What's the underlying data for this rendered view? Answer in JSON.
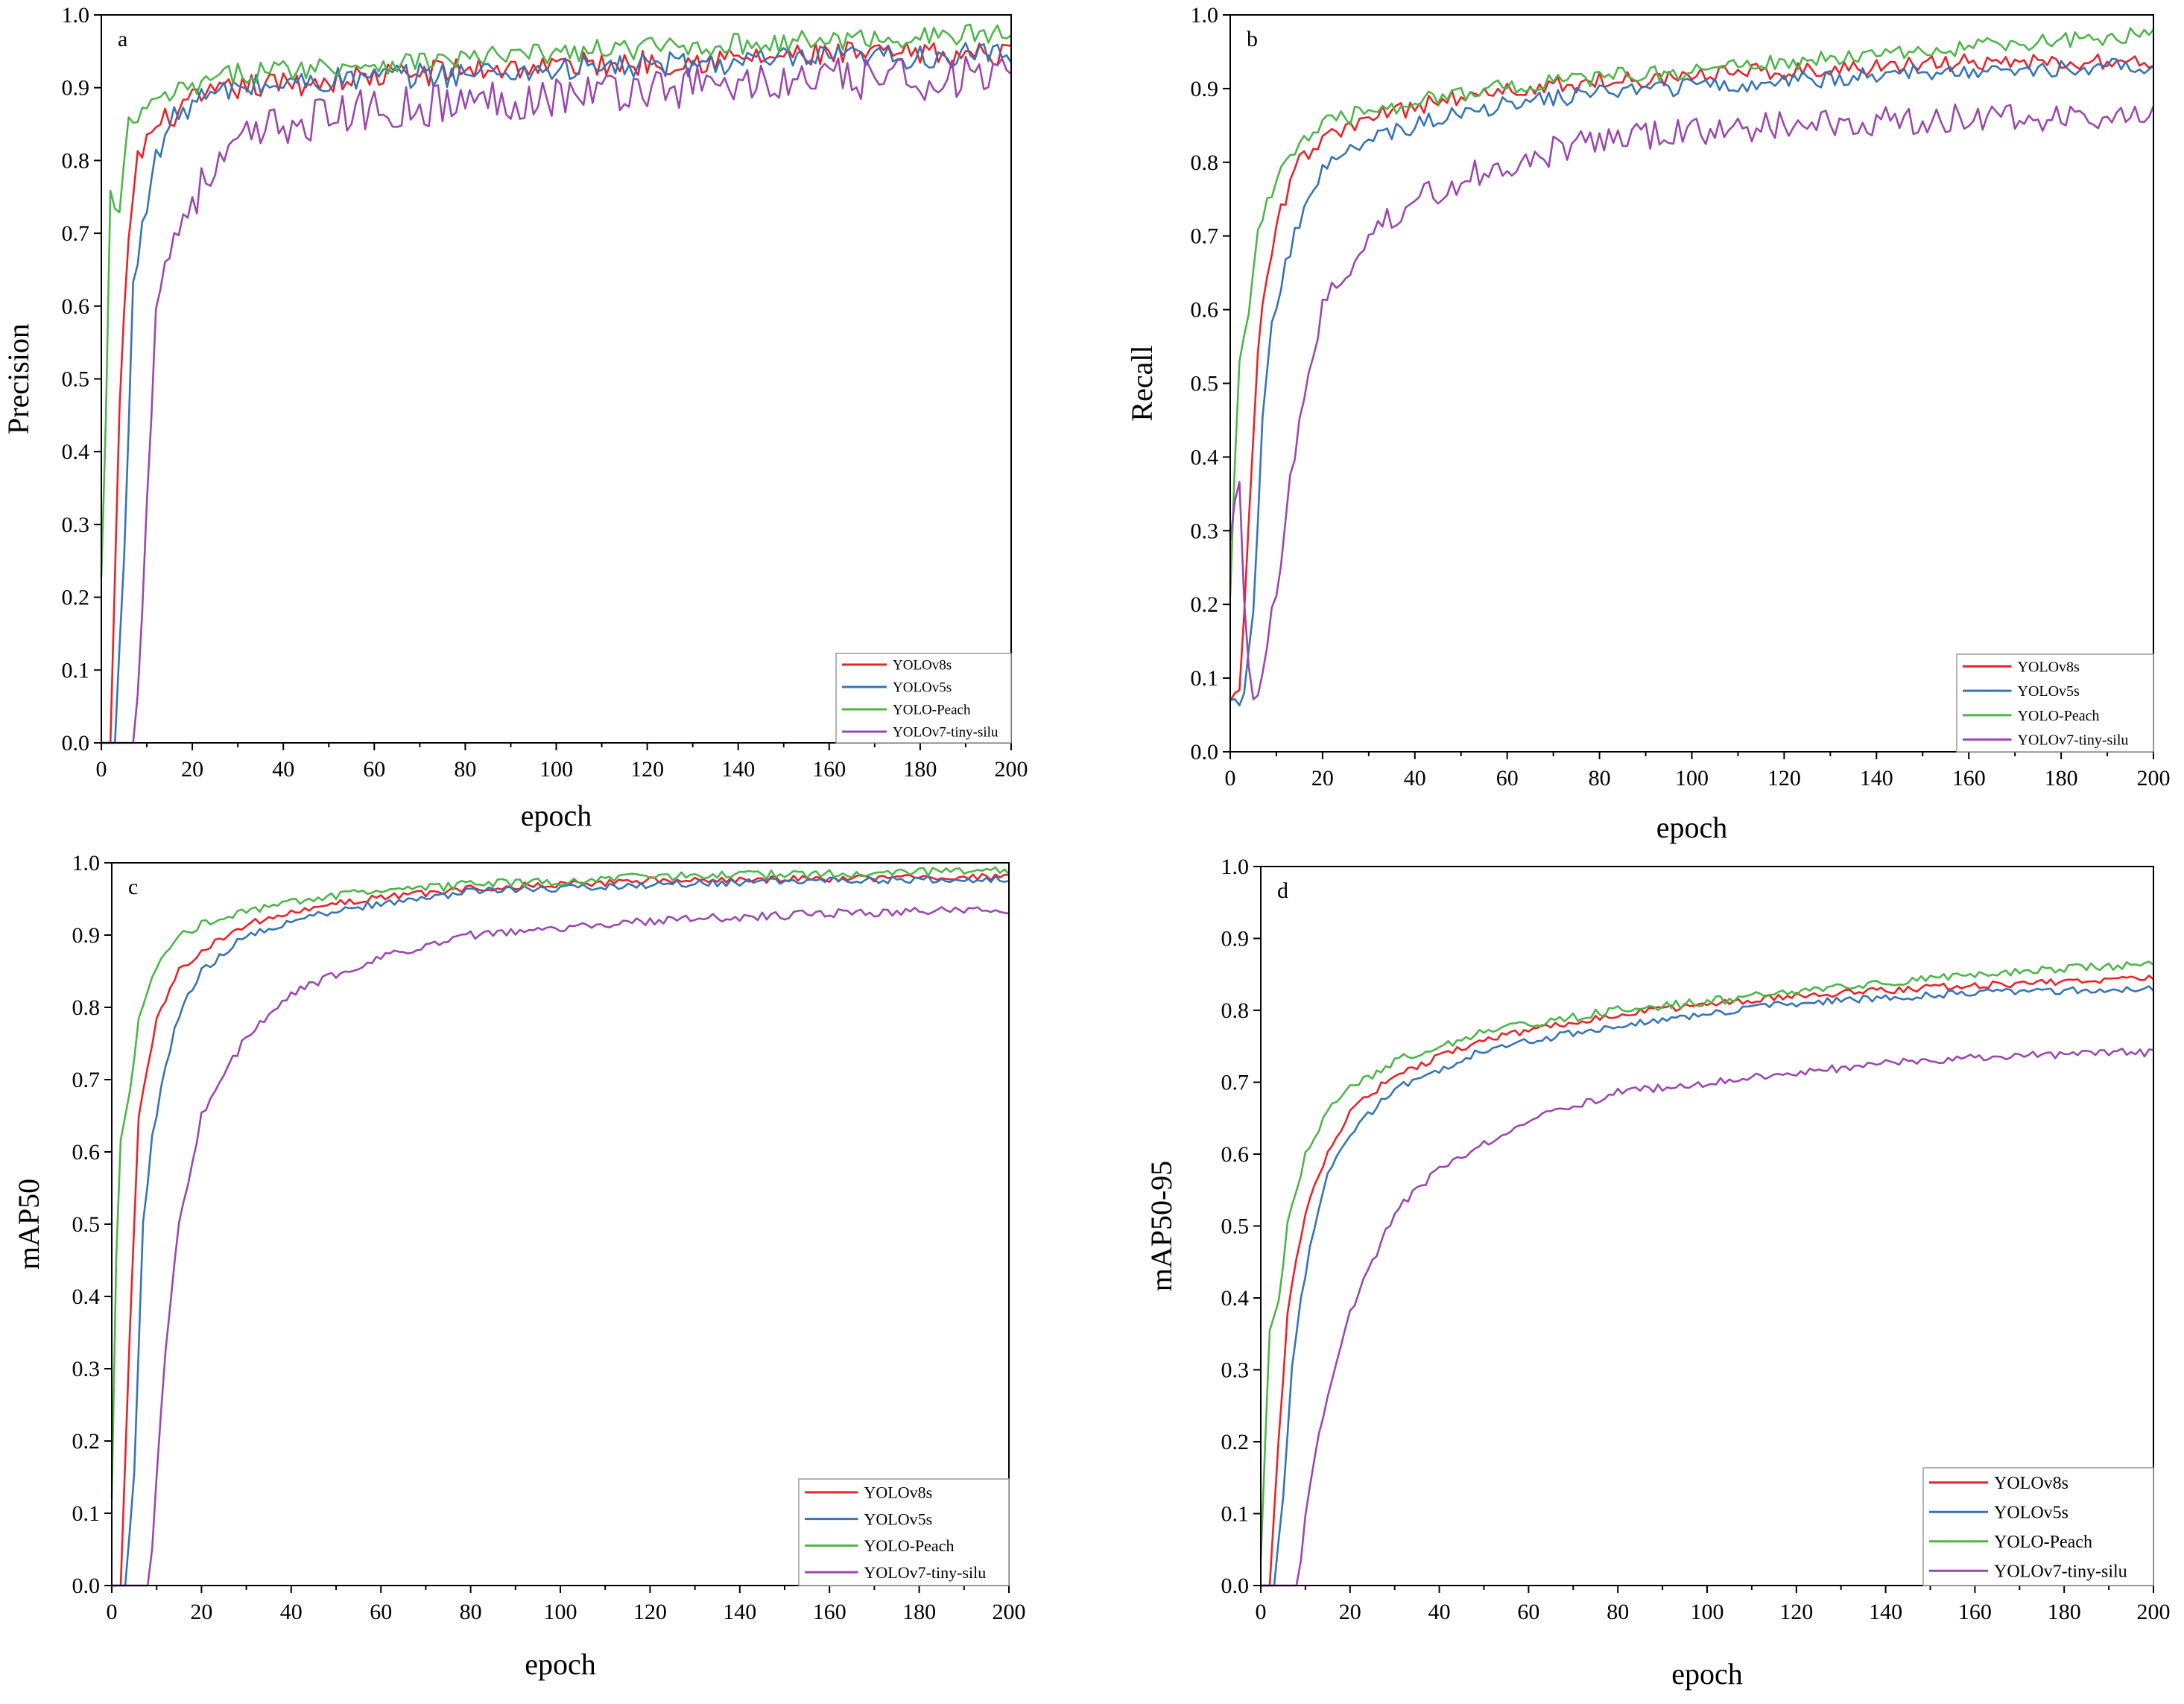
{
  "figure": {
    "legend_entries": [
      {
        "name": "YOLOv8s",
        "color": "#e8232a"
      },
      {
        "name": "YOLOv5s",
        "color": "#3574b8"
      },
      {
        "name": "YOLO-Peach",
        "color": "#4cb648"
      },
      {
        "name": "YOLOv7-tiny-silu",
        "color": "#9c47b0"
      }
    ]
  },
  "chart_data": [
    {
      "panel": "a",
      "type": "line",
      "xlabel": "epoch",
      "ylabel": "Precision",
      "xlim": [
        0,
        200
      ],
      "ylim": [
        0.0,
        1.0
      ],
      "xticks": [
        0,
        20,
        40,
        60,
        80,
        100,
        120,
        140,
        160,
        180,
        200
      ],
      "xtick_labels": [
        "0",
        "20",
        "40",
        "60",
        "80",
        "100",
        "120",
        "140",
        "160",
        "180",
        "200"
      ],
      "yticks": [
        0.0,
        0.1,
        0.2,
        0.3,
        0.4,
        0.5,
        0.6,
        0.7,
        0.8,
        0.9,
        1.0
      ],
      "ytick_labels": [
        "0.0",
        "0.1",
        "0.2",
        "0.3",
        "0.4",
        "0.5",
        "0.6",
        "0.7",
        "0.8",
        "0.9",
        "1.0"
      ],
      "legend": "bottom-right",
      "series": [
        {
          "name": "YOLOv8s",
          "color": "#e8232a",
          "noise": 0.018,
          "key_x": [
            0,
            2,
            4,
            6,
            8,
            10,
            15,
            20,
            30,
            50,
            80,
            120,
            160,
            200
          ],
          "key_y": [
            0.0,
            0.0,
            0.45,
            0.7,
            0.8,
            0.83,
            0.86,
            0.88,
            0.9,
            0.91,
            0.925,
            0.935,
            0.945,
            0.945
          ]
        },
        {
          "name": "YOLOv5s",
          "color": "#3574b8",
          "noise": 0.018,
          "key_x": [
            0,
            3,
            5,
            7,
            9,
            12,
            15,
            20,
            30,
            50,
            80,
            120,
            160,
            200
          ],
          "key_y": [
            0.0,
            0.0,
            0.25,
            0.62,
            0.72,
            0.8,
            0.85,
            0.88,
            0.9,
            0.91,
            0.92,
            0.93,
            0.94,
            0.945
          ]
        },
        {
          "name": "YOLO-Peach",
          "color": "#4cb648",
          "noise": 0.015,
          "key_x": [
            0,
            1,
            2,
            4,
            6,
            10,
            15,
            20,
            30,
            50,
            80,
            120,
            160,
            200
          ],
          "key_y": [
            0.22,
            0.45,
            0.75,
            0.72,
            0.85,
            0.87,
            0.89,
            0.9,
            0.92,
            0.93,
            0.94,
            0.955,
            0.965,
            0.975
          ]
        },
        {
          "name": "YOLOv7-tiny-silu",
          "color": "#9c47b0",
          "noise": 0.03,
          "key_x": [
            0,
            7,
            8,
            10,
            12,
            15,
            20,
            30,
            40,
            60,
            80,
            120,
            160,
            200
          ],
          "key_y": [
            0.0,
            0.0,
            0.05,
            0.35,
            0.6,
            0.68,
            0.75,
            0.82,
            0.85,
            0.87,
            0.88,
            0.9,
            0.91,
            0.915
          ]
        }
      ]
    },
    {
      "panel": "b",
      "type": "line",
      "xlabel": "epoch",
      "ylabel": "Recall",
      "xlim": [
        0,
        200
      ],
      "ylim": [
        0.0,
        1.0
      ],
      "xticks": [
        0,
        20,
        40,
        60,
        80,
        100,
        120,
        140,
        160,
        180,
        200
      ],
      "xtick_labels": [
        "0",
        "20",
        "40",
        "60",
        "80",
        "100",
        "120",
        "140",
        "160",
        "180",
        "200"
      ],
      "yticks": [
        0.0,
        0.1,
        0.2,
        0.3,
        0.4,
        0.5,
        0.6,
        0.7,
        0.8,
        0.9,
        1.0
      ],
      "ytick_labels": [
        "0.0",
        "0.1",
        "0.2",
        "0.3",
        "0.4",
        "0.5",
        "0.6",
        "0.7",
        "0.8",
        "0.9",
        "1.0"
      ],
      "legend": "bottom-right",
      "series": [
        {
          "name": "YOLOv8s",
          "color": "#e8232a",
          "noise": 0.012,
          "key_x": [
            0,
            2,
            4,
            6,
            8,
            10,
            15,
            20,
            30,
            50,
            80,
            120,
            160,
            200
          ],
          "key_y": [
            0.08,
            0.08,
            0.3,
            0.55,
            0.65,
            0.72,
            0.8,
            0.83,
            0.86,
            0.89,
            0.91,
            0.925,
            0.935,
            0.935
          ]
        },
        {
          "name": "YOLOv5s",
          "color": "#3574b8",
          "noise": 0.012,
          "key_x": [
            0,
            3,
            5,
            7,
            9,
            12,
            15,
            20,
            30,
            50,
            80,
            120,
            160,
            200
          ],
          "key_y": [
            0.08,
            0.07,
            0.2,
            0.45,
            0.58,
            0.66,
            0.72,
            0.79,
            0.83,
            0.87,
            0.895,
            0.91,
            0.925,
            0.93
          ]
        },
        {
          "name": "YOLO-Peach",
          "color": "#4cb648",
          "noise": 0.012,
          "key_x": [
            0,
            1,
            2,
            4,
            6,
            10,
            15,
            20,
            30,
            50,
            80,
            120,
            160,
            200
          ],
          "key_y": [
            0.22,
            0.4,
            0.53,
            0.6,
            0.7,
            0.78,
            0.83,
            0.85,
            0.87,
            0.895,
            0.915,
            0.935,
            0.955,
            0.975
          ]
        },
        {
          "name": "YOLOv7-tiny-silu",
          "color": "#9c47b0",
          "noise": 0.02,
          "key_x": [
            0,
            2,
            4,
            6,
            8,
            10,
            12,
            15,
            20,
            30,
            40,
            60,
            80,
            120,
            160,
            200
          ],
          "key_y": [
            0.3,
            0.35,
            0.1,
            0.07,
            0.15,
            0.22,
            0.32,
            0.45,
            0.6,
            0.7,
            0.75,
            0.8,
            0.83,
            0.85,
            0.86,
            0.86
          ]
        }
      ]
    },
    {
      "panel": "c",
      "type": "line",
      "xlabel": "epoch",
      "ylabel": "mAP50",
      "xlim": [
        0,
        200
      ],
      "ylim": [
        0.0,
        1.0
      ],
      "xticks": [
        0,
        20,
        40,
        60,
        80,
        100,
        120,
        140,
        160,
        180,
        200
      ],
      "xtick_labels": [
        "0",
        "20",
        "40",
        "60",
        "80",
        "100",
        "120",
        "140",
        "160",
        "180",
        "200"
      ],
      "yticks": [
        0.0,
        0.1,
        0.2,
        0.3,
        0.4,
        0.5,
        0.6,
        0.7,
        0.8,
        0.9,
        1.0
      ],
      "ytick_labels": [
        "0.0",
        "0.1",
        "0.2",
        "0.3",
        "0.4",
        "0.5",
        "0.6",
        "0.7",
        "0.8",
        "0.9",
        "1.0"
      ],
      "legend": "bottom-right",
      "series": [
        {
          "name": "YOLOv8s",
          "color": "#e8232a",
          "noise": 0.005,
          "key_x": [
            0,
            2,
            4,
            6,
            8,
            10,
            15,
            20,
            30,
            50,
            80,
            120,
            160,
            200
          ],
          "key_y": [
            0.0,
            0.0,
            0.35,
            0.65,
            0.72,
            0.78,
            0.85,
            0.88,
            0.915,
            0.945,
            0.965,
            0.975,
            0.978,
            0.98
          ]
        },
        {
          "name": "YOLOv5s",
          "color": "#3574b8",
          "noise": 0.005,
          "key_x": [
            0,
            3,
            5,
            7,
            9,
            12,
            15,
            20,
            30,
            50,
            80,
            120,
            160,
            200
          ],
          "key_y": [
            0.0,
            0.0,
            0.15,
            0.5,
            0.62,
            0.72,
            0.79,
            0.85,
            0.9,
            0.935,
            0.96,
            0.97,
            0.975,
            0.978
          ]
        },
        {
          "name": "YOLO-Peach",
          "color": "#4cb648",
          "noise": 0.006,
          "key_x": [
            0,
            1,
            2,
            4,
            6,
            10,
            15,
            20,
            30,
            50,
            80,
            120,
            160,
            200
          ],
          "key_y": [
            0.12,
            0.45,
            0.62,
            0.68,
            0.78,
            0.86,
            0.9,
            0.915,
            0.935,
            0.955,
            0.97,
            0.98,
            0.985,
            0.99
          ]
        },
        {
          "name": "YOLOv7-tiny-silu",
          "color": "#9c47b0",
          "noise": 0.006,
          "key_x": [
            0,
            8,
            9,
            10,
            12,
            15,
            20,
            30,
            40,
            60,
            80,
            120,
            160,
            200
          ],
          "key_y": [
            0.0,
            0.0,
            0.05,
            0.15,
            0.33,
            0.5,
            0.65,
            0.76,
            0.82,
            0.87,
            0.9,
            0.92,
            0.93,
            0.935
          ]
        }
      ]
    },
    {
      "panel": "d",
      "type": "line",
      "xlabel": "epoch",
      "ylabel": "mAP50-95",
      "xlim": [
        0,
        200
      ],
      "ylim": [
        0.0,
        1.0
      ],
      "xticks": [
        0,
        20,
        40,
        60,
        80,
        100,
        120,
        140,
        160,
        180,
        200
      ],
      "xtick_labels": [
        "0",
        "20",
        "40",
        "60",
        "80",
        "100",
        "120",
        "140",
        "160",
        "180",
        "200"
      ],
      "yticks": [
        0.0,
        0.1,
        0.2,
        0.3,
        0.4,
        0.5,
        0.6,
        0.7,
        0.8,
        0.9,
        1.0
      ],
      "ytick_labels": [
        "0.0",
        "0.1",
        "0.2",
        "0.3",
        "0.4",
        "0.5",
        "0.6",
        "0.7",
        "0.8",
        "0.9",
        "1.0"
      ],
      "legend": "bottom-right",
      "series": [
        {
          "name": "YOLOv8s",
          "color": "#e8232a",
          "noise": 0.005,
          "key_x": [
            0,
            2,
            4,
            6,
            8,
            10,
            15,
            20,
            30,
            50,
            80,
            120,
            160,
            200
          ],
          "key_y": [
            0.0,
            0.0,
            0.2,
            0.38,
            0.45,
            0.52,
            0.6,
            0.66,
            0.71,
            0.76,
            0.795,
            0.82,
            0.835,
            0.845
          ]
        },
        {
          "name": "YOLOv5s",
          "color": "#3574b8",
          "noise": 0.005,
          "key_x": [
            0,
            3,
            5,
            7,
            9,
            12,
            15,
            20,
            30,
            50,
            80,
            120,
            160,
            200
          ],
          "key_y": [
            0.0,
            0.0,
            0.12,
            0.3,
            0.4,
            0.5,
            0.57,
            0.63,
            0.69,
            0.745,
            0.78,
            0.81,
            0.825,
            0.83
          ]
        },
        {
          "name": "YOLO-Peach",
          "color": "#4cb648",
          "noise": 0.006,
          "key_x": [
            0,
            1,
            2,
            4,
            6,
            10,
            15,
            20,
            30,
            50,
            80,
            120,
            160,
            200
          ],
          "key_y": [
            0.03,
            0.2,
            0.35,
            0.4,
            0.5,
            0.6,
            0.66,
            0.69,
            0.73,
            0.77,
            0.8,
            0.825,
            0.85,
            0.865
          ]
        },
        {
          "name": "YOLOv7-tiny-silu",
          "color": "#9c47b0",
          "noise": 0.006,
          "key_x": [
            0,
            8,
            9,
            10,
            12,
            15,
            20,
            30,
            40,
            60,
            80,
            120,
            160,
            200
          ],
          "key_y": [
            0.0,
            0.0,
            0.03,
            0.1,
            0.18,
            0.26,
            0.38,
            0.52,
            0.58,
            0.65,
            0.685,
            0.715,
            0.735,
            0.742
          ]
        }
      ]
    }
  ]
}
